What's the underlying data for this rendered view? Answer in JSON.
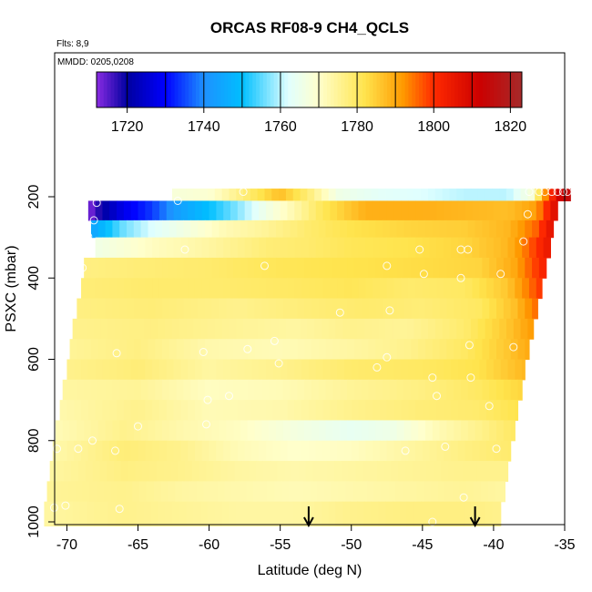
{
  "chart_data": {
    "type": "heatmap",
    "title": "ORCAS RF08-9 CH4_QCLS",
    "flights_label": "Flts: 8,9",
    "mmdd_label": "MMDD: 0205,0208",
    "xlabel": "Latitude (deg N)",
    "ylabel": "PSXC (mbar)",
    "xlim": [
      -72,
      -35
    ],
    "ylim": [
      1010,
      160
    ],
    "x_ticks": [
      -70,
      -65,
      -60,
      -55,
      -50,
      -45,
      -40,
      -35
    ],
    "y_ticks": [
      200,
      400,
      600,
      800,
      1000
    ],
    "colorbar": {
      "range": [
        1712,
        1823
      ],
      "tick_values": [
        1720,
        1740,
        1760,
        1780,
        1800,
        1820
      ],
      "stops": [
        {
          "value": 1712,
          "color": "#8a2be2"
        },
        {
          "value": 1720,
          "color": "#0000a0"
        },
        {
          "value": 1730,
          "color": "#0000ff"
        },
        {
          "value": 1740,
          "color": "#1e90ff"
        },
        {
          "value": 1750,
          "color": "#00bfff"
        },
        {
          "value": 1762,
          "color": "#e0ffff"
        },
        {
          "value": 1770,
          "color": "#ffffcc"
        },
        {
          "value": 1782,
          "color": "#ffe44d"
        },
        {
          "value": 1792,
          "color": "#ff9900"
        },
        {
          "value": 1800,
          "color": "#ff2a00"
        },
        {
          "value": 1812,
          "color": "#cc0000"
        },
        {
          "value": 1823,
          "color": "#a52a2a"
        }
      ]
    },
    "profile_markers_latitude": [
      -53,
      -41.3
    ],
    "level_bands": [
      {
        "p_top": 180,
        "p_bottom": 210,
        "lat_min": -62.6,
        "lat_max": -34.6,
        "values": [
          [
            -62.6,
            1768
          ],
          [
            -60,
            1769
          ],
          [
            -58,
            1776
          ],
          [
            -55,
            1787
          ],
          [
            -53,
            1778
          ],
          [
            -51,
            1766
          ],
          [
            -48,
            1763
          ],
          [
            -45,
            1762
          ],
          [
            -42,
            1760
          ],
          [
            -39,
            1760
          ],
          [
            -37.3,
            1768
          ],
          [
            -36.5,
            1790
          ],
          [
            -35.3,
            1812
          ],
          [
            -34.6,
            1816
          ]
        ]
      },
      {
        "p_top": 210,
        "p_bottom": 258,
        "lat_min": -68.5,
        "lat_max": -35.5,
        "values": [
          [
            -68.5,
            1712
          ],
          [
            -67.5,
            1720
          ],
          [
            -66,
            1728
          ],
          [
            -64,
            1734
          ],
          [
            -62,
            1744
          ],
          [
            -60,
            1750
          ],
          [
            -58,
            1757
          ],
          [
            -56,
            1766
          ],
          [
            -54,
            1773
          ],
          [
            -52,
            1781
          ],
          [
            -49,
            1789
          ],
          [
            -45,
            1789
          ],
          [
            -42,
            1788
          ],
          [
            -39,
            1787
          ],
          [
            -37,
            1791
          ],
          [
            -36.3,
            1800
          ],
          [
            -35.5,
            1810
          ]
        ]
      },
      {
        "p_top": 258,
        "p_bottom": 300,
        "lat_min": -68.3,
        "lat_max": -35.8,
        "values": [
          [
            -68.3,
            1744
          ],
          [
            -66,
            1756
          ],
          [
            -64,
            1762
          ],
          [
            -62,
            1766
          ],
          [
            -59,
            1772
          ],
          [
            -56,
            1775
          ],
          [
            -53,
            1779
          ],
          [
            -50,
            1782
          ],
          [
            -46,
            1784
          ],
          [
            -42,
            1785
          ],
          [
            -39,
            1788
          ],
          [
            -37,
            1796
          ],
          [
            -35.8,
            1808
          ]
        ]
      },
      {
        "p_top": 300,
        "p_bottom": 350,
        "lat_min": -68.0,
        "lat_max": -36.0,
        "values": [
          [
            -68,
            1766
          ],
          [
            -64,
            1771
          ],
          [
            -60,
            1774
          ],
          [
            -56,
            1778
          ],
          [
            -53,
            1779
          ],
          [
            -50,
            1781
          ],
          [
            -46,
            1782
          ],
          [
            -42,
            1784
          ],
          [
            -39,
            1788
          ],
          [
            -37.5,
            1796
          ],
          [
            -36,
            1806
          ]
        ]
      },
      {
        "p_top": 350,
        "p_bottom": 400,
        "lat_min": -68.8,
        "lat_max": -36.3,
        "values": [
          [
            -68.8,
            1777
          ],
          [
            -65,
            1778
          ],
          [
            -60,
            1779
          ],
          [
            -55,
            1781
          ],
          [
            -50,
            1782
          ],
          [
            -45,
            1783
          ],
          [
            -41,
            1784
          ],
          [
            -38.5,
            1790
          ],
          [
            -36.3,
            1803
          ]
        ]
      },
      {
        "p_top": 400,
        "p_bottom": 450,
        "lat_min": -69.0,
        "lat_max": -36.6,
        "values": [
          [
            -69,
            1778
          ],
          [
            -64,
            1779
          ],
          [
            -59,
            1779
          ],
          [
            -54,
            1780
          ],
          [
            -50,
            1781
          ],
          [
            -46,
            1779
          ],
          [
            -42,
            1780
          ],
          [
            -39,
            1786
          ],
          [
            -36.6,
            1800
          ]
        ]
      },
      {
        "p_top": 450,
        "p_bottom": 500,
        "lat_min": -69.3,
        "lat_max": -36.9,
        "values": [
          [
            -69.3,
            1777
          ],
          [
            -64,
            1778
          ],
          [
            -58,
            1776
          ],
          [
            -53,
            1778
          ],
          [
            -49,
            1779
          ],
          [
            -45,
            1778
          ],
          [
            -41,
            1780
          ],
          [
            -38.5,
            1787
          ],
          [
            -36.9,
            1796
          ]
        ]
      },
      {
        "p_top": 500,
        "p_bottom": 550,
        "lat_min": -69.6,
        "lat_max": -37.2,
        "values": [
          [
            -69.6,
            1776
          ],
          [
            -64,
            1777
          ],
          [
            -58,
            1775
          ],
          [
            -54,
            1774
          ],
          [
            -50,
            1776
          ],
          [
            -46,
            1775
          ],
          [
            -42,
            1779
          ],
          [
            -39,
            1786
          ],
          [
            -37.2,
            1792
          ]
        ]
      },
      {
        "p_top": 550,
        "p_bottom": 600,
        "lat_min": -69.8,
        "lat_max": -37.5,
        "values": [
          [
            -69.8,
            1775
          ],
          [
            -65,
            1777
          ],
          [
            -60,
            1773
          ],
          [
            -55,
            1772
          ],
          [
            -50,
            1774
          ],
          [
            -46,
            1776
          ],
          [
            -42,
            1780
          ],
          [
            -39,
            1786
          ],
          [
            -37.5,
            1790
          ]
        ]
      },
      {
        "p_top": 600,
        "p_bottom": 650,
        "lat_min": -70.0,
        "lat_max": -37.8,
        "values": [
          [
            -70,
            1776
          ],
          [
            -65,
            1778
          ],
          [
            -60,
            1774
          ],
          [
            -55,
            1776
          ],
          [
            -50,
            1779
          ],
          [
            -45,
            1780
          ],
          [
            -41,
            1782
          ],
          [
            -37.8,
            1788
          ]
        ]
      },
      {
        "p_top": 650,
        "p_bottom": 700,
        "lat_min": -70.3,
        "lat_max": -38.0,
        "values": [
          [
            -70.3,
            1774
          ],
          [
            -65,
            1775
          ],
          [
            -60,
            1771
          ],
          [
            -55,
            1772
          ],
          [
            -50,
            1775
          ],
          [
            -45,
            1777
          ],
          [
            -41,
            1780
          ],
          [
            -38,
            1784
          ]
        ]
      },
      {
        "p_top": 700,
        "p_bottom": 750,
        "lat_min": -70.5,
        "lat_max": -38.3,
        "values": [
          [
            -70.5,
            1773
          ],
          [
            -65,
            1776
          ],
          [
            -60,
            1772
          ],
          [
            -55,
            1773
          ],
          [
            -50,
            1776
          ],
          [
            -45,
            1778
          ],
          [
            -41,
            1779
          ],
          [
            -38.3,
            1782
          ]
        ]
      },
      {
        "p_top": 750,
        "p_bottom": 800,
        "lat_min": -70.8,
        "lat_max": -38.5,
        "values": [
          [
            -70.8,
            1772
          ],
          [
            -66,
            1776
          ],
          [
            -62,
            1773
          ],
          [
            -58,
            1771
          ],
          [
            -54,
            1767
          ],
          [
            -50,
            1764
          ],
          [
            -47,
            1766
          ],
          [
            -44,
            1772
          ],
          [
            -41,
            1776
          ],
          [
            -38.5,
            1780
          ]
        ]
      },
      {
        "p_top": 800,
        "p_bottom": 850,
        "lat_min": -71.0,
        "lat_max": -38.8,
        "values": [
          [
            -71,
            1773
          ],
          [
            -66,
            1778
          ],
          [
            -62,
            1776
          ],
          [
            -58,
            1772
          ],
          [
            -54,
            1770
          ],
          [
            -50,
            1771
          ],
          [
            -46,
            1774
          ],
          [
            -42,
            1777
          ],
          [
            -38.8,
            1779
          ]
        ]
      },
      {
        "p_top": 850,
        "p_bottom": 900,
        "lat_min": -71.2,
        "lat_max": -39.0,
        "values": [
          [
            -71.2,
            1774
          ],
          [
            -66,
            1777
          ],
          [
            -62,
            1776
          ],
          [
            -58,
            1774
          ],
          [
            -54,
            1773
          ],
          [
            -50,
            1774
          ],
          [
            -46,
            1775
          ],
          [
            -42,
            1776
          ],
          [
            -39,
            1776
          ]
        ]
      },
      {
        "p_top": 900,
        "p_bottom": 950,
        "lat_min": -71.4,
        "lat_max": -39.2,
        "values": [
          [
            -71.4,
            1775
          ],
          [
            -66,
            1776
          ],
          [
            -62,
            1774
          ],
          [
            -58,
            1773
          ],
          [
            -54,
            1772
          ],
          [
            -50,
            1773
          ],
          [
            -46,
            1774
          ],
          [
            -42,
            1775
          ],
          [
            -39.2,
            1774
          ]
        ]
      },
      {
        "p_top": 950,
        "p_bottom": 1010,
        "lat_min": -71.6,
        "lat_max": -39.5,
        "values": [
          [
            -71.6,
            1774
          ],
          [
            -66,
            1776
          ],
          [
            -62,
            1775
          ],
          [
            -58,
            1774
          ],
          [
            -54,
            1774
          ],
          [
            -50,
            1776
          ],
          [
            -46,
            1777
          ],
          [
            -42,
            1777
          ],
          [
            -39.5,
            1776
          ]
        ]
      }
    ],
    "sample_points": [
      [
        -67.9,
        215
      ],
      [
        -62.2,
        210
      ],
      [
        -57.6,
        188
      ],
      [
        -37.5,
        188
      ],
      [
        -36.8,
        188
      ],
      [
        -36.4,
        188
      ],
      [
        -35.9,
        188
      ],
      [
        -35.5,
        188
      ],
      [
        -35.1,
        188
      ],
      [
        -34.8,
        188
      ],
      [
        -68.1,
        258
      ],
      [
        -37.6,
        243
      ],
      [
        -68.5,
        298
      ],
      [
        -61.7,
        330
      ],
      [
        -45.2,
        330
      ],
      [
        -42.3,
        330
      ],
      [
        -41.8,
        330
      ],
      [
        -37.9,
        310
      ],
      [
        -68.9,
        375
      ],
      [
        -56.1,
        370
      ],
      [
        -47.5,
        370
      ],
      [
        -44.9,
        390
      ],
      [
        -42.3,
        400
      ],
      [
        -39.5,
        390
      ],
      [
        -47.3,
        480
      ],
      [
        -50.8,
        485
      ],
      [
        -66.5,
        585
      ],
      [
        -60.4,
        582
      ],
      [
        -57.3,
        575
      ],
      [
        -55.4,
        555
      ],
      [
        -41.7,
        565
      ],
      [
        -38.6,
        570
      ],
      [
        -48.2,
        620
      ],
      [
        -44.3,
        645
      ],
      [
        -41.6,
        645
      ],
      [
        -47.5,
        595
      ],
      [
        -55.1,
        610
      ],
      [
        -60.1,
        700
      ],
      [
        -58.6,
        690
      ],
      [
        -44.0,
        690
      ],
      [
        -40.3,
        715
      ],
      [
        -68.2,
        800
      ],
      [
        -65.0,
        765
      ],
      [
        -60.2,
        760
      ],
      [
        -70.7,
        820
      ],
      [
        -69.2,
        820
      ],
      [
        -66.6,
        825
      ],
      [
        -46.2,
        825
      ],
      [
        -43.4,
        815
      ],
      [
        -39.8,
        820
      ],
      [
        -70.9,
        965
      ],
      [
        -70.1,
        960
      ],
      [
        -66.3,
        968
      ],
      [
        -42.1,
        940
      ],
      [
        -44.3,
        1000
      ]
    ]
  }
}
